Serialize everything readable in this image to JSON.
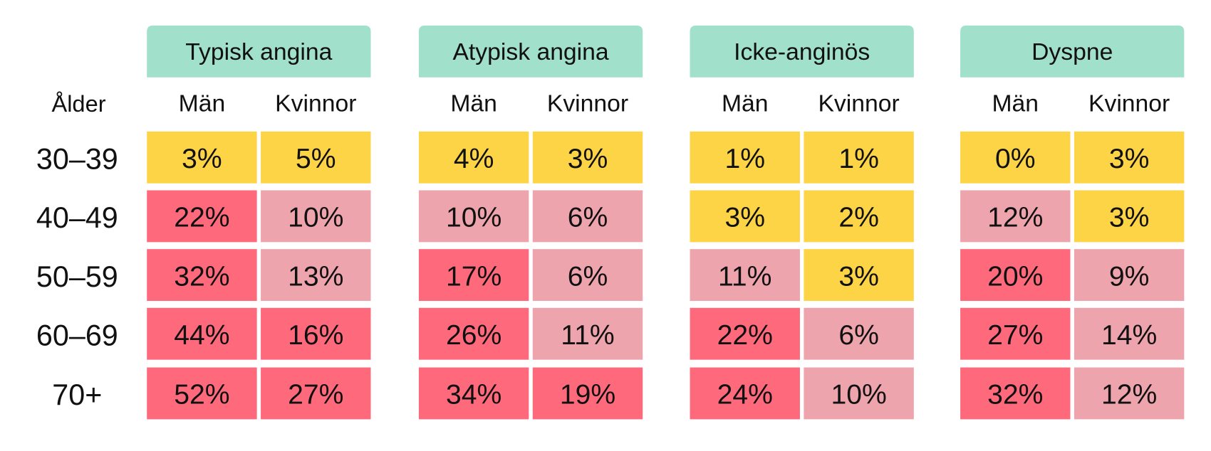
{
  "age_header": "Ålder",
  "groups": [
    {
      "title": "Typisk angina",
      "columns": [
        "Män",
        "Kvinnor"
      ]
    },
    {
      "title": "Atypisk angina",
      "columns": [
        "Män",
        "Kvinnor"
      ]
    },
    {
      "title": "Icke-anginös",
      "columns": [
        "Män",
        "Kvinnor"
      ]
    },
    {
      "title": "Dyspne",
      "columns": [
        "Män",
        "Kvinnor"
      ]
    }
  ],
  "header_color": "#a1e0cb",
  "rows": [
    {
      "age": "30–39",
      "cells": [
        "3%",
        "5%",
        "4%",
        "3%",
        "1%",
        "1%",
        "0%",
        "3%"
      ],
      "colors": [
        "#fdd446",
        "#fdd446",
        "#fdd446",
        "#fdd446",
        "#fdd446",
        "#fdd446",
        "#fdd446",
        "#fdd446"
      ]
    },
    {
      "age": "40–49",
      "cells": [
        "22%",
        "10%",
        "10%",
        "6%",
        "3%",
        "2%",
        "12%",
        "3%"
      ],
      "colors": [
        "#fe6a7b",
        "#eea4ad",
        "#eea4ad",
        "#eea4ad",
        "#fdd446",
        "#fdd446",
        "#eea4ad",
        "#fdd446"
      ]
    },
    {
      "age": "50–59",
      "cells": [
        "32%",
        "13%",
        "17%",
        "6%",
        "11%",
        "3%",
        "20%",
        "9%"
      ],
      "colors": [
        "#fe6a7b",
        "#eea4ad",
        "#fe6a7b",
        "#eea4ad",
        "#eea4ad",
        "#fdd446",
        "#fe6a7b",
        "#eea4ad"
      ]
    },
    {
      "age": "60–69",
      "cells": [
        "44%",
        "16%",
        "26%",
        "11%",
        "22%",
        "6%",
        "27%",
        "14%"
      ],
      "colors": [
        "#fe6a7b",
        "#fe6a7b",
        "#fe6a7b",
        "#eea4ad",
        "#fe6a7b",
        "#eea4ad",
        "#fe6a7b",
        "#eea4ad"
      ]
    },
    {
      "age": "70+",
      "cells": [
        "52%",
        "27%",
        "34%",
        "19%",
        "24%",
        "10%",
        "32%",
        "12%"
      ],
      "colors": [
        "#fe6a7b",
        "#fe6a7b",
        "#fe6a7b",
        "#fe6a7b",
        "#fe6a7b",
        "#eea4ad",
        "#fe6a7b",
        "#eea4ad"
      ]
    }
  ]
}
